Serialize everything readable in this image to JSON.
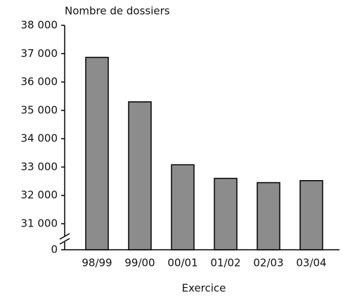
{
  "chart_data": {
    "type": "bar",
    "title": "Nombre de dossiers",
    "x_label": "Exercice",
    "categories": [
      "98/99",
      "99/00",
      "00/01",
      "01/02",
      "02/03",
      "03/04"
    ],
    "values": [
      36870,
      35300,
      33080,
      32600,
      32450,
      32520
    ],
    "color": "#8c8c8c",
    "ylim": [
      0,
      38000
    ],
    "yticks": [
      {
        "value": 0,
        "label": "0"
      },
      {
        "value": 31000,
        "label": "31 000"
      },
      {
        "value": 32000,
        "label": "32 000"
      },
      {
        "value": 33000,
        "label": "33 000"
      },
      {
        "value": 34000,
        "label": "34 000"
      },
      {
        "value": 35000,
        "label": "35 000"
      },
      {
        "value": 36000,
        "label": "36 000"
      },
      {
        "value": 37000,
        "label": "37 000"
      },
      {
        "value": 38000,
        "label": "38 000"
      }
    ],
    "axis_break": true
  }
}
